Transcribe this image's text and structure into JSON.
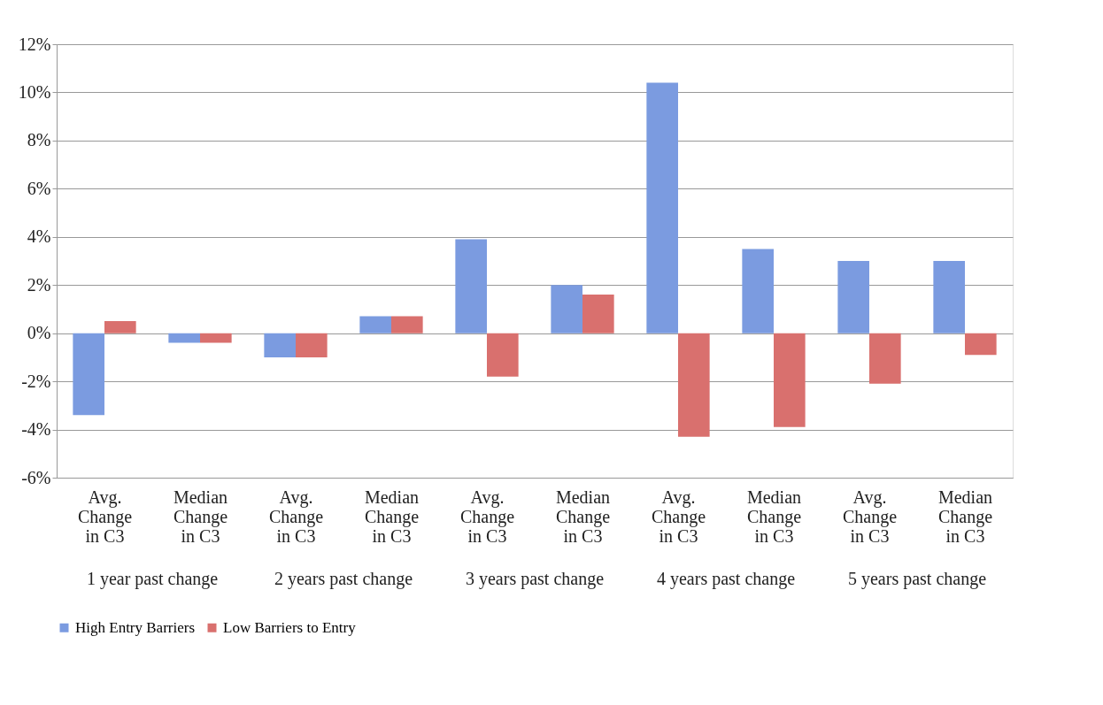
{
  "chart_data": {
    "type": "bar",
    "categories": [
      "Avg. Change in C3",
      "Median Change in C3",
      "Avg. Change in C3",
      "Median Change in C3",
      "Avg. Change in C3",
      "Median Change in C3",
      "Avg. Change in C3",
      "Median Change in C3",
      "Avg. Change in C3",
      "Median Change in C3"
    ],
    "series": [
      {
        "name": "High Entry Barriers",
        "color": "#7b9be0",
        "values": [
          -3.4,
          -0.4,
          -1.0,
          0.7,
          3.9,
          2.0,
          10.4,
          3.5,
          3.0,
          3.0
        ]
      },
      {
        "name": "Low Barriers to Entry",
        "color": "#d9706e",
        "values": [
          0.5,
          -0.4,
          -1.0,
          0.7,
          -1.8,
          1.6,
          -4.3,
          -3.9,
          -2.1,
          -0.9
        ]
      }
    ],
    "annotations": [
      "1 year past change",
      "2 years past change",
      "3 years past change",
      "4 years past change",
      "5 years past change"
    ],
    "ylim": [
      -6,
      12
    ],
    "yticks": [
      {
        "value": -6,
        "label": "-6%"
      },
      {
        "value": -4,
        "label": "-4%"
      },
      {
        "value": -2,
        "label": "-2%"
      },
      {
        "value": 0,
        "label": "0%"
      },
      {
        "value": 2,
        "label": "2%"
      },
      {
        "value": 4,
        "label": "4%"
      },
      {
        "value": 6,
        "label": "6%"
      },
      {
        "value": 8,
        "label": "8%"
      },
      {
        "value": 10,
        "label": "10%"
      },
      {
        "value": 12,
        "label": "12%"
      }
    ],
    "grid": "y",
    "legend": "bottom"
  }
}
